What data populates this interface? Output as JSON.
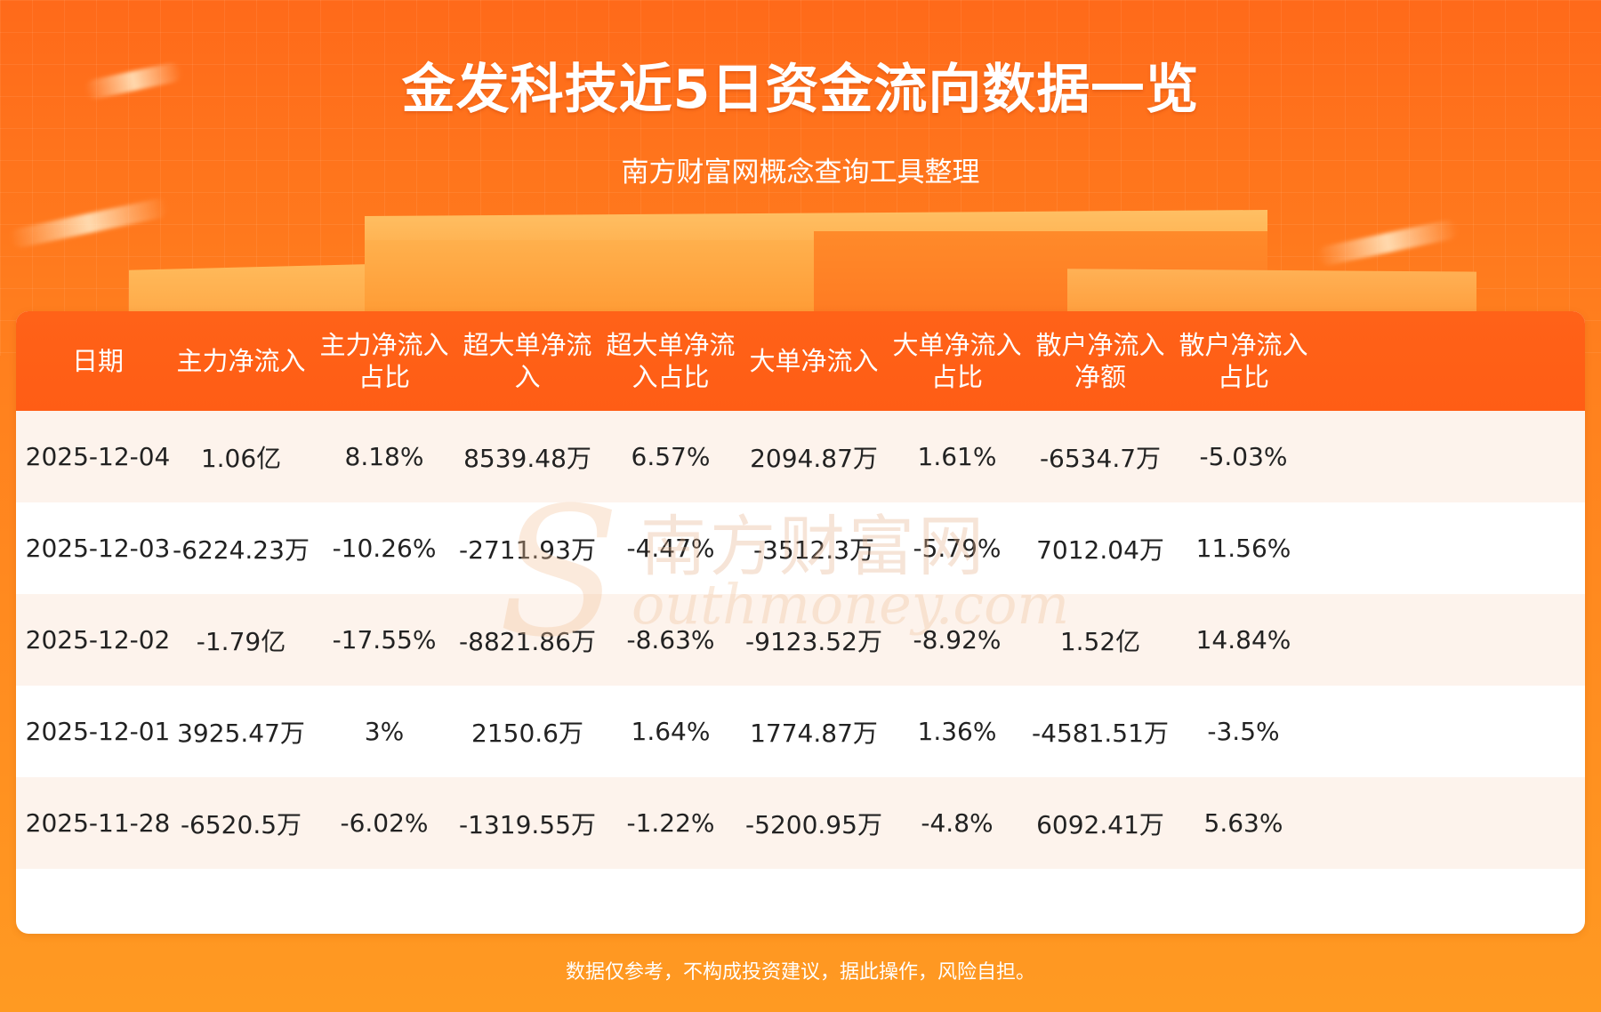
{
  "title": "金发科技近5日资金流向数据一览",
  "subtitle": "南方财富网概念查询工具整理",
  "watermark": {
    "cn": "南方财富网",
    "en": "outhmoney.com",
    "s": "S"
  },
  "footer": "数据仅参考，不构成投资建议，据此操作，风险自担。",
  "chart_data": {
    "type": "table",
    "columns": [
      "日期",
      "主力净流入",
      "主力净流入\n占比",
      "超大单净流\n入",
      "超大单净流\n入占比",
      "大单净流入",
      "大单净流入\n占比",
      "散户净流入\n净额",
      "散户净流入\n占比"
    ],
    "rows": [
      [
        "2025-12-04",
        "1.06亿",
        "8.18%",
        "8539.48万",
        "6.57%",
        "2094.87万",
        "1.61%",
        "-6534.7万",
        "-5.03%"
      ],
      [
        "2025-12-03",
        "-6224.23万",
        "-10.26%",
        "-2711.93万",
        "-4.47%",
        "-3512.3万",
        "-5.79%",
        "7012.04万",
        "11.56%"
      ],
      [
        "2025-12-02",
        "-1.79亿",
        "-17.55%",
        "-8821.86万",
        "-8.63%",
        "-9123.52万",
        "-8.92%",
        "1.52亿",
        "14.84%"
      ],
      [
        "2025-12-01",
        "3925.47万",
        "3%",
        "2150.6万",
        "1.64%",
        "1774.87万",
        "1.36%",
        "-4581.51万",
        "-3.5%"
      ],
      [
        "2025-11-28",
        "-6520.5万",
        "-6.02%",
        "-1319.55万",
        "-1.22%",
        "-5200.95万",
        "-4.8%",
        "6092.41万",
        "5.63%"
      ]
    ]
  }
}
